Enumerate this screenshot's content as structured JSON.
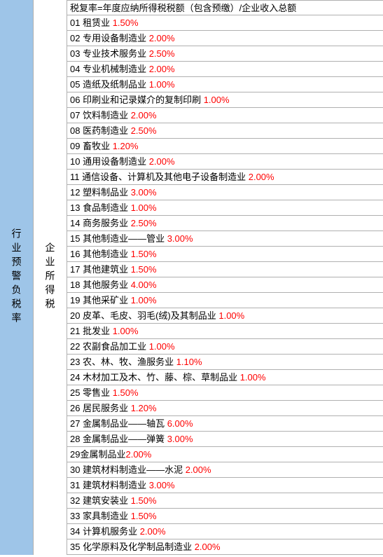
{
  "leftHeader": "行业预警负税率",
  "midHeader": "企业所得税",
  "formulaRow": "税复率=年度应纳所得税税额（包含预缴）/企业收入总额",
  "rows": [
    {
      "num": "01",
      "name": "租赁业",
      "rate": "1.50%"
    },
    {
      "num": "02",
      "name": "专用设备制造业",
      "rate": "2.00%"
    },
    {
      "num": "03",
      "name": "专业技术服务业",
      "rate": "2.50%"
    },
    {
      "num": "04",
      "name": "专业机械制造业",
      "rate": "2.00%"
    },
    {
      "num": "05",
      "name": "造纸及纸制品业",
      "rate": "1.00%"
    },
    {
      "num": "06",
      "name": "印刷业和记录媒介的复制印刷",
      "rate": "1.00%"
    },
    {
      "num": "07",
      "name": "饮料制造业",
      "rate": "2.00%"
    },
    {
      "num": "08",
      "name": "医药制造业",
      "rate": "2.50%"
    },
    {
      "num": "09",
      "name": "畜牧业",
      "rate": "1.20%"
    },
    {
      "num": "10",
      "name": "通用设备制造业",
      "rate": "2.00%"
    },
    {
      "num": "11",
      "name": "通信设备、计算机及其他电子设备制造业",
      "rate": "2.00%"
    },
    {
      "num": "12",
      "name": "塑料制品业",
      "rate": "3.00%"
    },
    {
      "num": "13",
      "name": "食品制造业",
      "rate": "1.00%"
    },
    {
      "num": "14",
      "name": "商务服务业",
      "rate": "2.50%"
    },
    {
      "num": "15",
      "name": "其他制造业——管业",
      "rate": "3.00%"
    },
    {
      "num": "16",
      "name": "其他制造业",
      "rate": "1.50%"
    },
    {
      "num": "17",
      "name": "其他建筑业",
      "rate": "1.50%"
    },
    {
      "num": "18",
      "name": "其他服务业",
      "rate": "4.00%"
    },
    {
      "num": "19",
      "name": "其他采矿业",
      "rate": "1.00%"
    },
    {
      "num": "20",
      "name": "皮革、毛皮、羽毛(绒)及其制品业",
      "rate": "1.00%"
    },
    {
      "num": "21",
      "name": "批发业",
      "rate": "1.00%"
    },
    {
      "num": "22",
      "name": "农副食品加工业",
      "rate": "1.00%"
    },
    {
      "num": "23",
      "name": "农、林、牧、渔服务业",
      "rate": "1.10%"
    },
    {
      "num": "24",
      "name": "木材加工及木、竹、藤、棕、草制品业",
      "rate": "1.00%"
    },
    {
      "num": "25",
      "name": "零售业",
      "rate": "1.50%"
    },
    {
      "num": "26",
      "name": "居民服务业",
      "rate": "1.20%"
    },
    {
      "num": "27",
      "name": "金属制品业——轴瓦",
      "rate": "6.00%"
    },
    {
      "num": "28",
      "name": "金属制品业——弹簧",
      "rate": "3.00%"
    },
    {
      "num": "29",
      "name": "金属制品业",
      "rate": "2.00%",
      "nospace": true
    },
    {
      "num": "30",
      "name": "建筑材料制造业——水泥",
      "rate": "2.00%"
    },
    {
      "num": "31",
      "name": "建筑材料制造业",
      "rate": "3.00%"
    },
    {
      "num": "32",
      "name": "建筑安装业",
      "rate": "1.50%"
    },
    {
      "num": "33",
      "name": "家具制造业",
      "rate": "1.50%"
    },
    {
      "num": "34",
      "name": "计算机服务业",
      "rate": "2.00%"
    },
    {
      "num": "35",
      "name": "化学原料及化学制品制造业",
      "rate": "2.00%"
    }
  ],
  "colors": {
    "leftBg": "#9ec5e8",
    "rateColor": "#ff0000",
    "borderColor": "#b0b0b0",
    "textColor": "#000000"
  }
}
